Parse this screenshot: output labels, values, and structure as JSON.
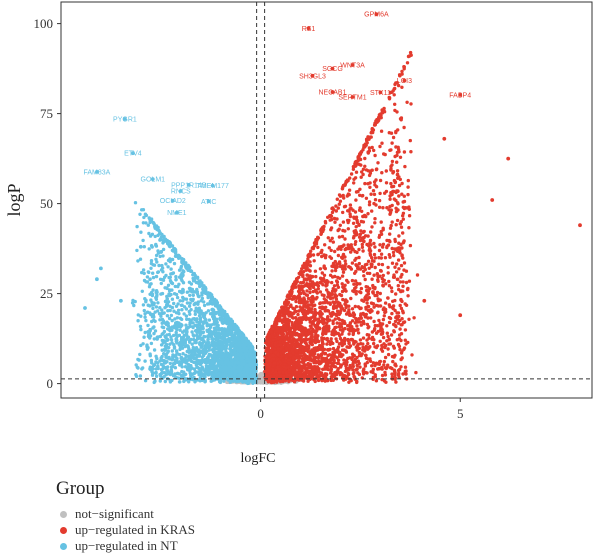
{
  "chart_data": {
    "type": "scatter",
    "title": "",
    "xlabel": "logFC",
    "ylabel": "logP",
    "xlim": [
      -5,
      8.3
    ],
    "ylim": [
      -4,
      106
    ],
    "x_ticks": [
      0,
      5
    ],
    "y_ticks": [
      0,
      25,
      50,
      75,
      100
    ],
    "reference_lines": {
      "vertical_x": [
        -0.1,
        0.1
      ],
      "horizontal_y": [
        1.3
      ],
      "style": "dashed"
    },
    "grid": false,
    "colors": {
      "not_significant": "#c0c0c0",
      "up_KRAS": "#e33b2e",
      "up_NT": "#66c2e3"
    },
    "legend": {
      "title": "Group",
      "position": "bottom-left",
      "entries": [
        "not−significant",
        "up−regulated in KRAS",
        "up−regulated in NT"
      ]
    },
    "series": [
      {
        "name": "up−regulated in KRAS",
        "color_key": "up_KRAS",
        "labeled_points": [
          {
            "x": 2.9,
            "y": 102.6,
            "label": "GPM6A"
          },
          {
            "x": 1.2,
            "y": 98.7,
            "label": "RS1"
          },
          {
            "x": 2.3,
            "y": 88.5,
            "label": "WNT3A"
          },
          {
            "x": 1.8,
            "y": 87.5,
            "label": "SGCG"
          },
          {
            "x": 1.3,
            "y": 85.5,
            "label": "SH3GL3"
          },
          {
            "x": 3.6,
            "y": 84.2,
            "label": "LGI3"
          },
          {
            "x": 1.8,
            "y": 81.0,
            "label": "NECAB1"
          },
          {
            "x": 3.0,
            "y": 80.9,
            "label": "STX11"
          },
          {
            "x": 5.0,
            "y": 80.2,
            "label": "FABP4"
          },
          {
            "x": 2.3,
            "y": 79.6,
            "label": "SERTM1"
          }
        ],
        "outlier_points": [
          {
            "x": 8.0,
            "y": 44.0
          },
          {
            "x": 6.2,
            "y": 62.5
          },
          {
            "x": 5.8,
            "y": 51.0
          },
          {
            "x": 5.0,
            "y": 19.0
          },
          {
            "x": 4.6,
            "y": 68.0
          },
          {
            "x": 4.1,
            "y": 23.0
          }
        ],
        "approx_point_count": 3200
      },
      {
        "name": "up−regulated in NT",
        "color_key": "up_NT",
        "labeled_points": [
          {
            "x": -3.4,
            "y": 73.5,
            "label": "PYGR1"
          },
          {
            "x": -3.2,
            "y": 64.0,
            "label": "ETV4"
          },
          {
            "x": -4.1,
            "y": 58.8,
            "label": "FAM83A"
          },
          {
            "x": -2.7,
            "y": 56.8,
            "label": "GOLM1"
          },
          {
            "x": -1.8,
            "y": 55.2,
            "label": "PPP1R14B"
          },
          {
            "x": -1.2,
            "y": 55.0,
            "label": "TMEM177"
          },
          {
            "x": -2.0,
            "y": 53.5,
            "label": "RNCS"
          },
          {
            "x": -2.2,
            "y": 50.8,
            "label": "OCIAD2"
          },
          {
            "x": -1.3,
            "y": 50.6,
            "label": "ATIC"
          },
          {
            "x": -2.1,
            "y": 47.5,
            "label": "NME1"
          }
        ],
        "outlier_points": [
          {
            "x": -4.4,
            "y": 21.0
          },
          {
            "x": -4.0,
            "y": 32.0
          },
          {
            "x": -4.1,
            "y": 29.0
          },
          {
            "x": -3.5,
            "y": 23.0
          },
          {
            "x": -3.0,
            "y": 38.0
          }
        ],
        "approx_point_count": 2600
      },
      {
        "name": "not−significant",
        "color_key": "not_significant",
        "approx_point_count": 700
      }
    ]
  }
}
